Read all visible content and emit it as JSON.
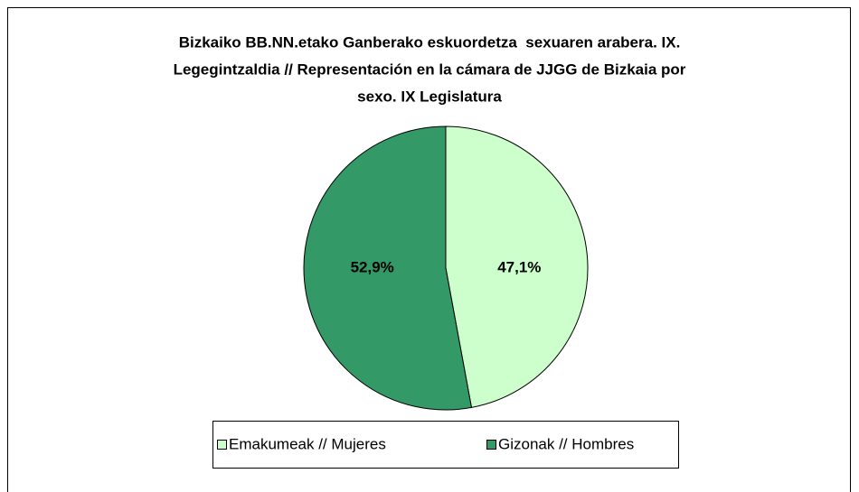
{
  "chart_data": {
    "type": "pie",
    "title": [
      "Bizkaiko BB.NN.etako Ganberako eskuordetza  sexuaren arabera. IX.",
      "Legegintzaldia // Representación en la cámara de JJGG de Bizkaia por",
      "sexo. IX Legislatura"
    ],
    "categories": [
      "Emakumeak // Mujeres",
      "Gizonak // Hombres"
    ],
    "values": [
      47.1,
      52.9
    ],
    "value_labels": [
      "47,1%",
      "52,9%"
    ],
    "colors": [
      "#ccffcc",
      "#339966"
    ],
    "legend": "bottom"
  }
}
